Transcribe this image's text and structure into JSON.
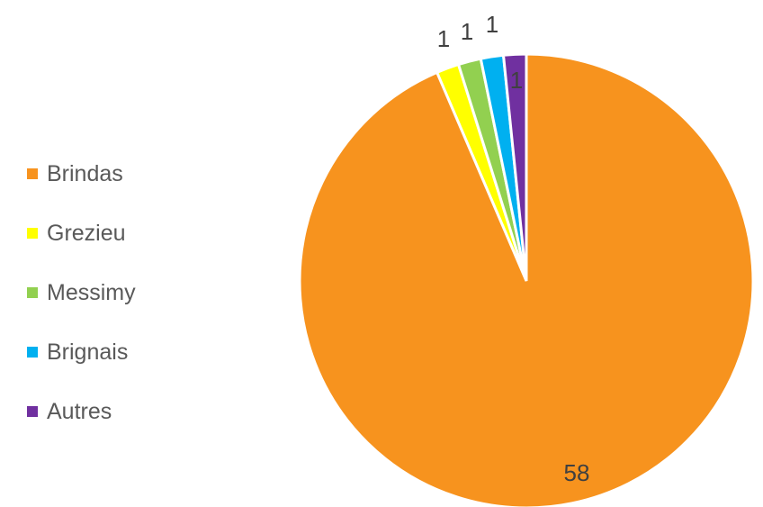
{
  "chart_data": {
    "type": "pie",
    "categories": [
      "Brindas",
      "Grezieu",
      "Messimy",
      "Brignais",
      "Autres"
    ],
    "values": [
      58,
      1,
      1,
      1,
      1
    ],
    "data_labels": [
      "58",
      "1",
      "1",
      "1",
      "1"
    ],
    "colors": [
      "#F7931E",
      "#FFFF00",
      "#92D050",
      "#00B0F0",
      "#7030A0"
    ],
    "legend_position": "left",
    "title": ""
  }
}
